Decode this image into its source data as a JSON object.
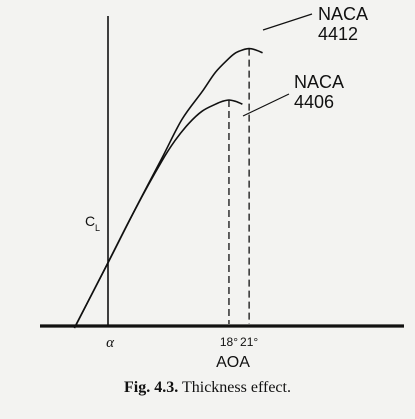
{
  "chart_data": {
    "type": "line",
    "title": "",
    "xlabel": "AOA",
    "ylabel": "C",
    "ylabel_subscript": "L",
    "x_origin_label": "α",
    "x_tick_labels": [
      "18°",
      "21°"
    ],
    "series": [
      {
        "name_lines": [
          "NACA",
          "4412"
        ],
        "x": [
          -5,
          0,
          4,
          8,
          11,
          14,
          16,
          18,
          19,
          20,
          21,
          22,
          23
        ],
        "y": [
          0.0,
          0.47,
          0.85,
          1.22,
          1.5,
          1.7,
          1.84,
          1.94,
          1.98,
          2.0,
          2.01,
          2.0,
          1.98
        ],
        "stall_angle": 21
      },
      {
        "name_lines": [
          "NACA",
          "4406"
        ],
        "x": [
          -5,
          0,
          4,
          8,
          10,
          12,
          14,
          16,
          17,
          18,
          19,
          20
        ],
        "y": [
          0.0,
          0.47,
          0.85,
          1.2,
          1.35,
          1.47,
          1.56,
          1.61,
          1.63,
          1.64,
          1.63,
          1.61
        ],
        "stall_angle": 18
      }
    ],
    "grid": false,
    "legend": "none"
  },
  "caption": {
    "fig_label": "Fig. 4.3.",
    "text": "Thickness effect."
  }
}
